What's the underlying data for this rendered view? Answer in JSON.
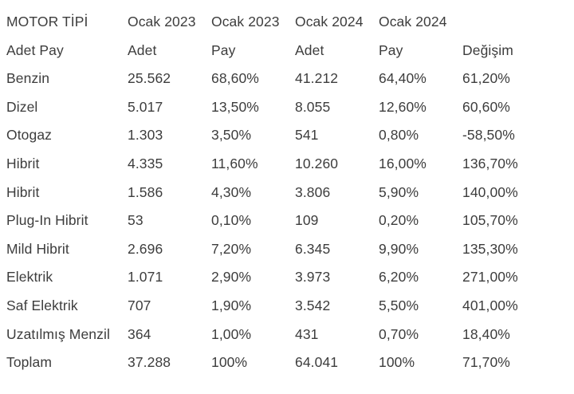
{
  "colors": {
    "background": "#ffffff",
    "text": "#3d3d3d"
  },
  "chart_data": {
    "type": "table",
    "title": "MOTOR TİPİ",
    "title_row": [
      "MOTOR TİPİ",
      "Ocak 2023",
      "Ocak 2023",
      "Ocak 2024",
      "Ocak 2024",
      ""
    ],
    "header_row": [
      "Adet Pay",
      "Adet",
      "Pay",
      "Adet",
      "Pay",
      "Değişim"
    ],
    "rows": [
      [
        "Benzin",
        "25.562",
        "68,60%",
        "41.212",
        "64,40%",
        "61,20%"
      ],
      [
        "Dizel",
        "5.017",
        "13,50%",
        "8.055",
        "12,60%",
        "60,60%"
      ],
      [
        "Otogaz",
        "1.303",
        "3,50%",
        "541",
        "0,80%",
        "-58,50%"
      ],
      [
        "Hibrit",
        "4.335",
        "11,60%",
        "10.260",
        "16,00%",
        "136,70%"
      ],
      [
        "Hibrit",
        "1.586",
        "4,30%",
        "3.806",
        "5,90%",
        "140,00%"
      ],
      [
        "Plug-In Hibrit",
        "53",
        "0,10%",
        "109",
        "0,20%",
        "105,70%"
      ],
      [
        "Mild Hibrit",
        "2.696",
        "7,20%",
        "6.345",
        "9,90%",
        "135,30%"
      ],
      [
        "Elektrik",
        "1.071",
        "2,90%",
        "3.973",
        "6,20%",
        "271,00%"
      ],
      [
        "Saf Elektrik",
        "707",
        "1,90%",
        "3.542",
        "5,50%",
        "401,00%"
      ],
      [
        "Uzatılmış Menzil",
        "364",
        "1,00%",
        "431",
        "0,70%",
        "18,40%"
      ],
      [
        "Toplam",
        "37.288",
        "100%",
        "64.041",
        "100%",
        "71,70%"
      ]
    ],
    "layout": {
      "grid": false,
      "notes": "plain text table, no borders, dark gray text on white"
    }
  }
}
